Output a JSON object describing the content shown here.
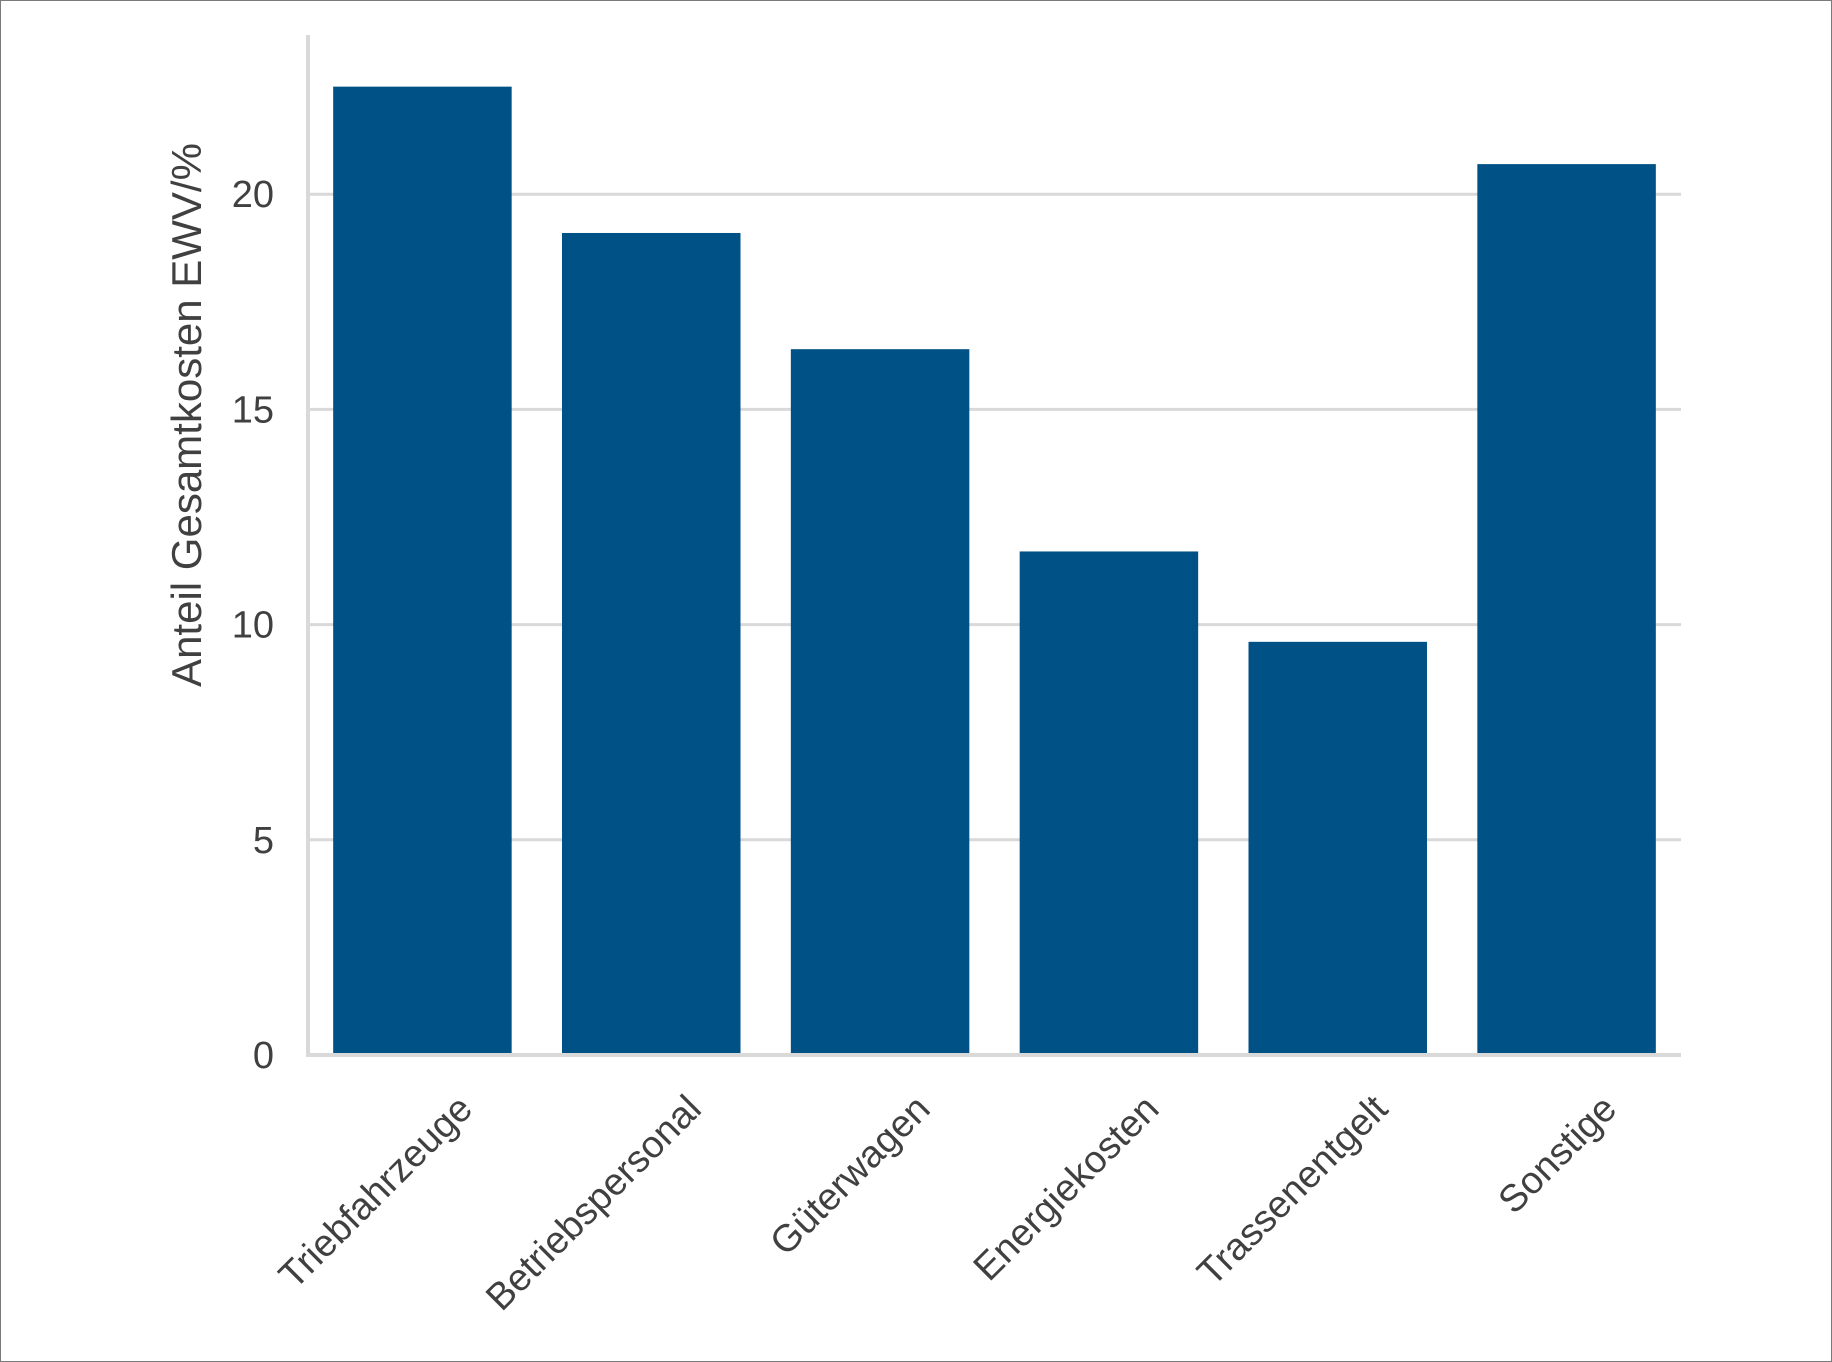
{
  "chart_data": {
    "type": "bar",
    "title": "",
    "xlabel": "",
    "ylabel": "Anteil Gesamtkosten EWV/%",
    "categories": [
      "Triebfahrzeuge",
      "Betriebspersonal",
      "Güterwagen",
      "Energiekosten",
      "Trassenentgelt",
      "Sonstige"
    ],
    "values": [
      22.5,
      19.1,
      16.4,
      11.7,
      9.6,
      20.7
    ],
    "yticks": [
      0,
      5,
      10,
      15,
      20
    ],
    "ylim": [
      0,
      23.7
    ],
    "grid": "horizontal",
    "legend": "none",
    "bar_color": "#005185",
    "grid_color": "#d9d9d9"
  }
}
